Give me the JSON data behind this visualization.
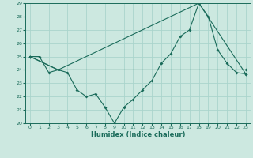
{
  "title": "",
  "xlabel": "Humidex (Indice chaleur)",
  "bg_color": "#cce8e0",
  "line_color": "#1a6b5a",
  "grid_color": "#aad4cc",
  "xlim": [
    -0.5,
    23.5
  ],
  "ylim": [
    20,
    29
  ],
  "xticks": [
    0,
    1,
    2,
    3,
    4,
    5,
    6,
    7,
    8,
    9,
    10,
    11,
    12,
    13,
    14,
    15,
    16,
    17,
    18,
    19,
    20,
    21,
    22,
    23
  ],
  "yticks": [
    20,
    21,
    22,
    23,
    24,
    25,
    26,
    27,
    28,
    29
  ],
  "series1_x": [
    0,
    1,
    2,
    3,
    4,
    5,
    6,
    7,
    8,
    9,
    10,
    11,
    12,
    13,
    14,
    15,
    16,
    17,
    18,
    19,
    20,
    21,
    22,
    23
  ],
  "series1_y": [
    25.0,
    25.0,
    23.8,
    24.0,
    23.8,
    22.5,
    22.0,
    22.2,
    21.2,
    20.0,
    21.2,
    21.8,
    22.5,
    23.2,
    24.5,
    25.2,
    26.5,
    27.0,
    29.0,
    28.0,
    25.5,
    24.5,
    23.8,
    23.7
  ],
  "series2_x": [
    0,
    3,
    18,
    23
  ],
  "series2_y": [
    25.0,
    24.0,
    29.0,
    23.7
  ],
  "series3_x": [
    0,
    3,
    23
  ],
  "series3_y": [
    25.0,
    24.0,
    24.0
  ]
}
